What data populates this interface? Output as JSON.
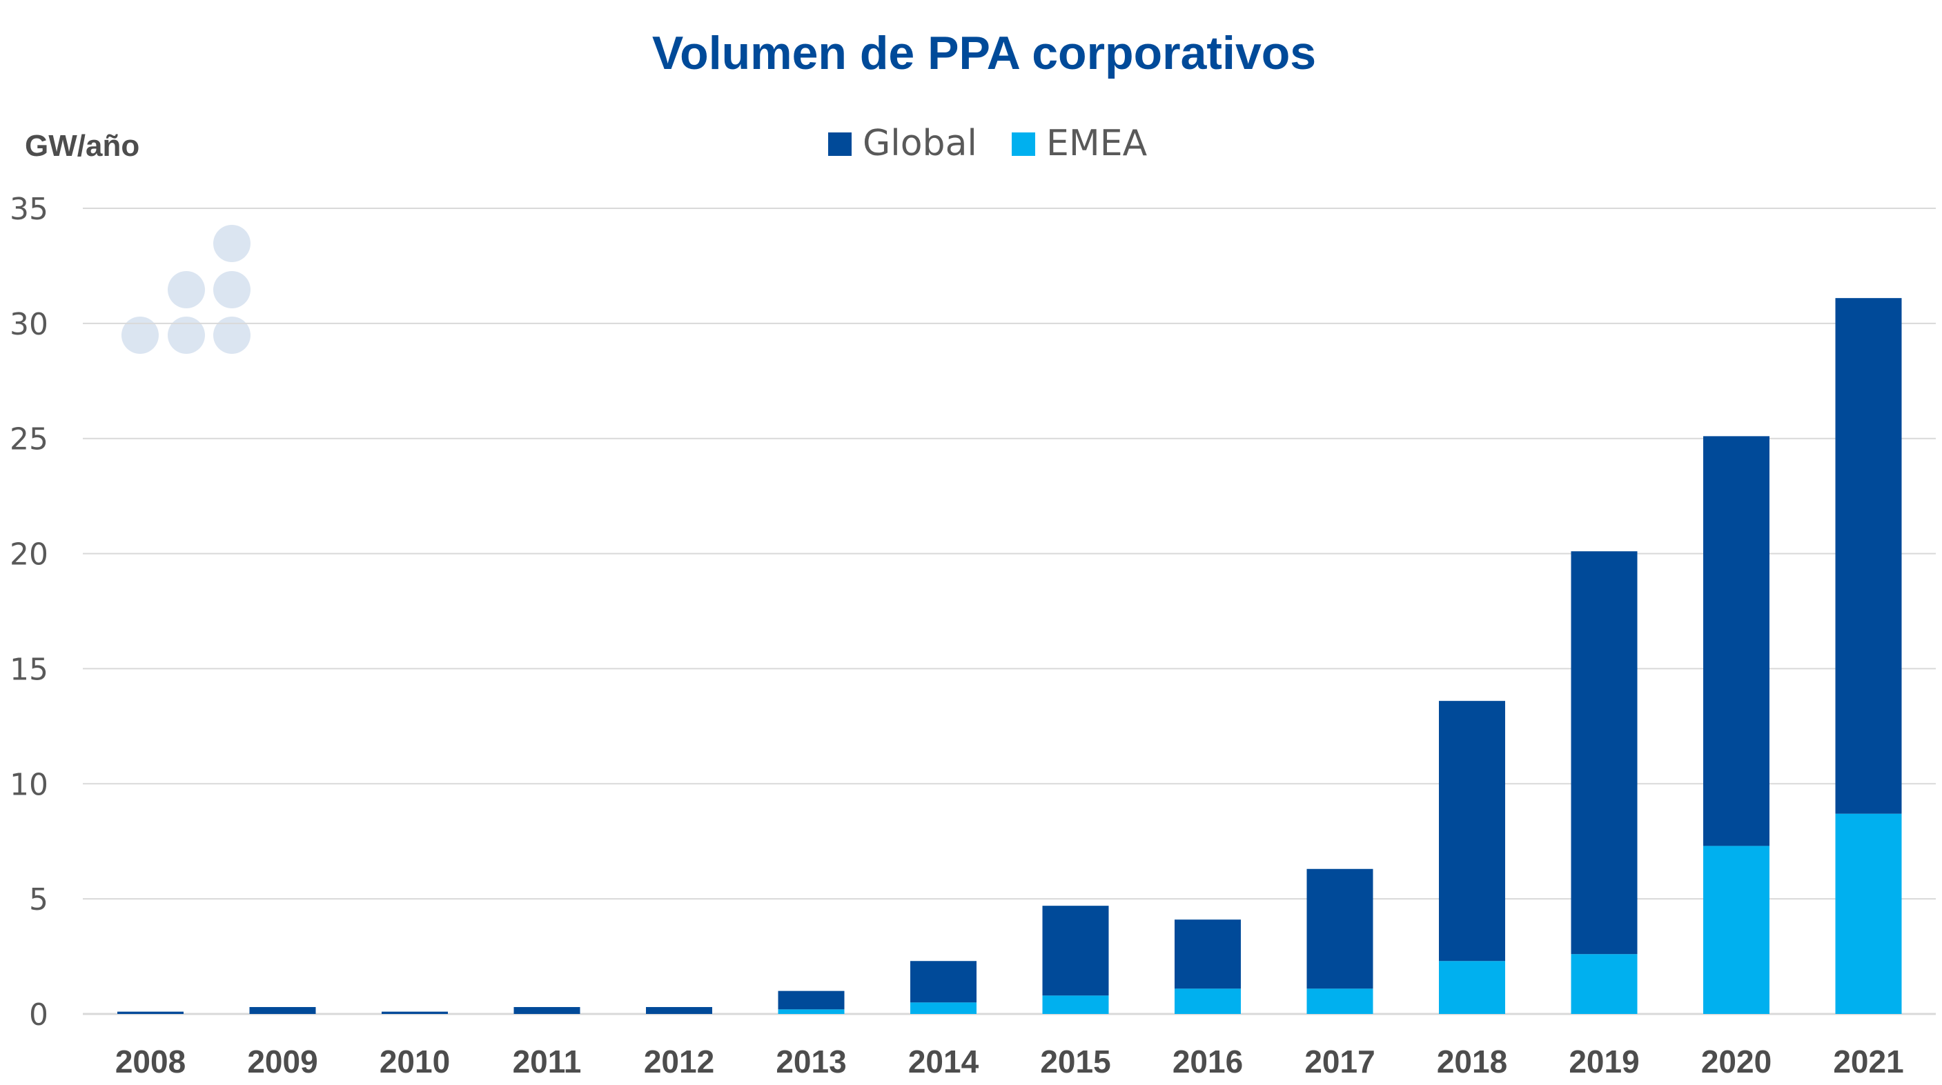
{
  "colors": {
    "global": "#004a99",
    "emea": "#00b0ef",
    "grid": "#d9d9d9",
    "watermark": "#dbe5f1"
  },
  "chart_data": {
    "type": "bar",
    "stacked": true,
    "title": "Volumen de PPA corporativos",
    "ylabel": "GW/año",
    "xlabel": "",
    "categories": [
      "2008",
      "2009",
      "2010",
      "2011",
      "2012",
      "2013",
      "2014",
      "2015",
      "2016",
      "2017",
      "2018",
      "2019",
      "2020",
      "2021"
    ],
    "series": [
      {
        "name": "EMEA",
        "color": "#00b0ef",
        "values": [
          0,
          0,
          0,
          0,
          0,
          0.2,
          0.5,
          0.8,
          1.1,
          1.1,
          2.3,
          2.6,
          7.3,
          8.7
        ]
      },
      {
        "name": "Global",
        "color": "#004a99",
        "values": [
          0.1,
          0.3,
          0.1,
          0.3,
          0.3,
          0.8,
          1.8,
          3.9,
          3.0,
          5.2,
          11.3,
          17.5,
          17.8,
          22.4
        ]
      }
    ],
    "ylim": [
      0,
      35
    ],
    "yticks": [
      0,
      5,
      10,
      15,
      20,
      25,
      30,
      35
    ],
    "grid": true,
    "legend": {
      "position": "top-center",
      "order": [
        "Global",
        "EMEA"
      ]
    }
  }
}
